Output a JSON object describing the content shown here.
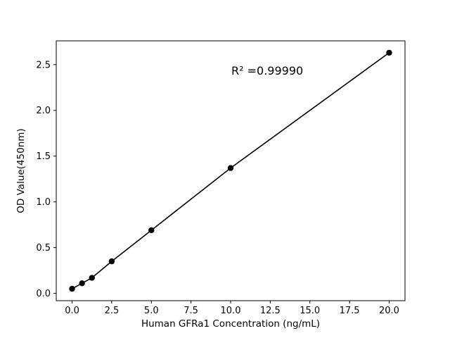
{
  "chart_data": {
    "type": "scatter",
    "title": "",
    "xlabel": "Human GFRa1 Concentration (ng/mL)",
    "ylabel": "OD Value(450nm)",
    "annotation": "R² =0.99990",
    "x": [
      0,
      0.625,
      1.25,
      2.5,
      5,
      10,
      20
    ],
    "y": [
      0.05,
      0.11,
      0.17,
      0.35,
      0.69,
      1.37,
      2.63
    ],
    "xlim": [
      -1,
      21
    ],
    "ylim": [
      -0.08,
      2.76
    ],
    "xticks": [
      0,
      2.5,
      5,
      7.5,
      10,
      12.5,
      15,
      17.5,
      20
    ],
    "xtick_labels": [
      "0.0",
      "2.5",
      "5.0",
      "7.5",
      "10.0",
      "12.5",
      "15.0",
      "17.5",
      "20.0"
    ],
    "yticks": [
      0,
      0.5,
      1,
      1.5,
      2,
      2.5
    ],
    "ytick_labels": [
      "0.0",
      "0.5",
      "1.0",
      "1.5",
      "2.0",
      "2.5"
    ],
    "grid": false,
    "legend_position": "none",
    "line_color": "#000000",
    "marker_color": "#000000",
    "axes_color": "#000000",
    "background_color": "#ffffff"
  }
}
